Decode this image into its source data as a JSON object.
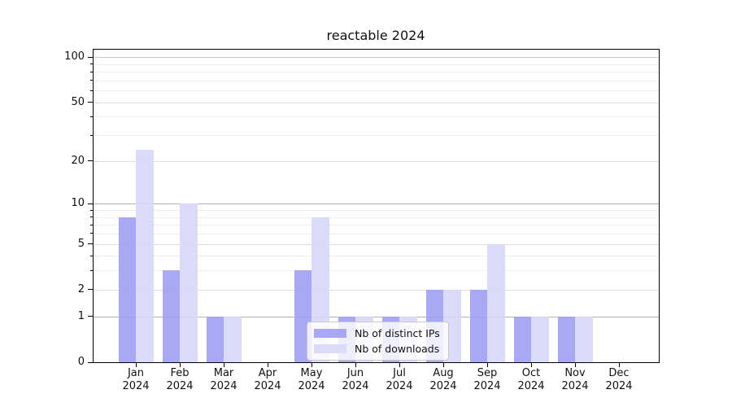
{
  "title": "reactable 2024",
  "chart_data": {
    "type": "bar",
    "title": "reactable 2024",
    "categories": [
      "Jan",
      "Feb",
      "Mar",
      "Apr",
      "May",
      "Jun",
      "Jul",
      "Aug",
      "Sep",
      "Oct",
      "Nov",
      "Dec"
    ],
    "xtick_year_line": "2024",
    "series": [
      {
        "name": "Nb of distinct IPs",
        "color": "#9e9ef3",
        "values": [
          8,
          3,
          1,
          0,
          3,
          1,
          1,
          2,
          2,
          1,
          1,
          0
        ]
      },
      {
        "name": "Nb of downloads",
        "color": "#d7d7f8",
        "values": [
          24,
          10,
          1,
          0,
          8,
          1,
          1,
          2,
          5,
          1,
          1,
          0
        ]
      }
    ],
    "xlabel": "",
    "ylabel": "",
    "yscale": "log1p",
    "ylim": [
      0,
      112
    ],
    "yticks": [
      0,
      1,
      2,
      5,
      10,
      20,
      50,
      100
    ],
    "minor_yticks": [
      3,
      4,
      6,
      7,
      8,
      9,
      30,
      40,
      60,
      70,
      80,
      90
    ],
    "grid": true,
    "legend_position": "lower center"
  }
}
